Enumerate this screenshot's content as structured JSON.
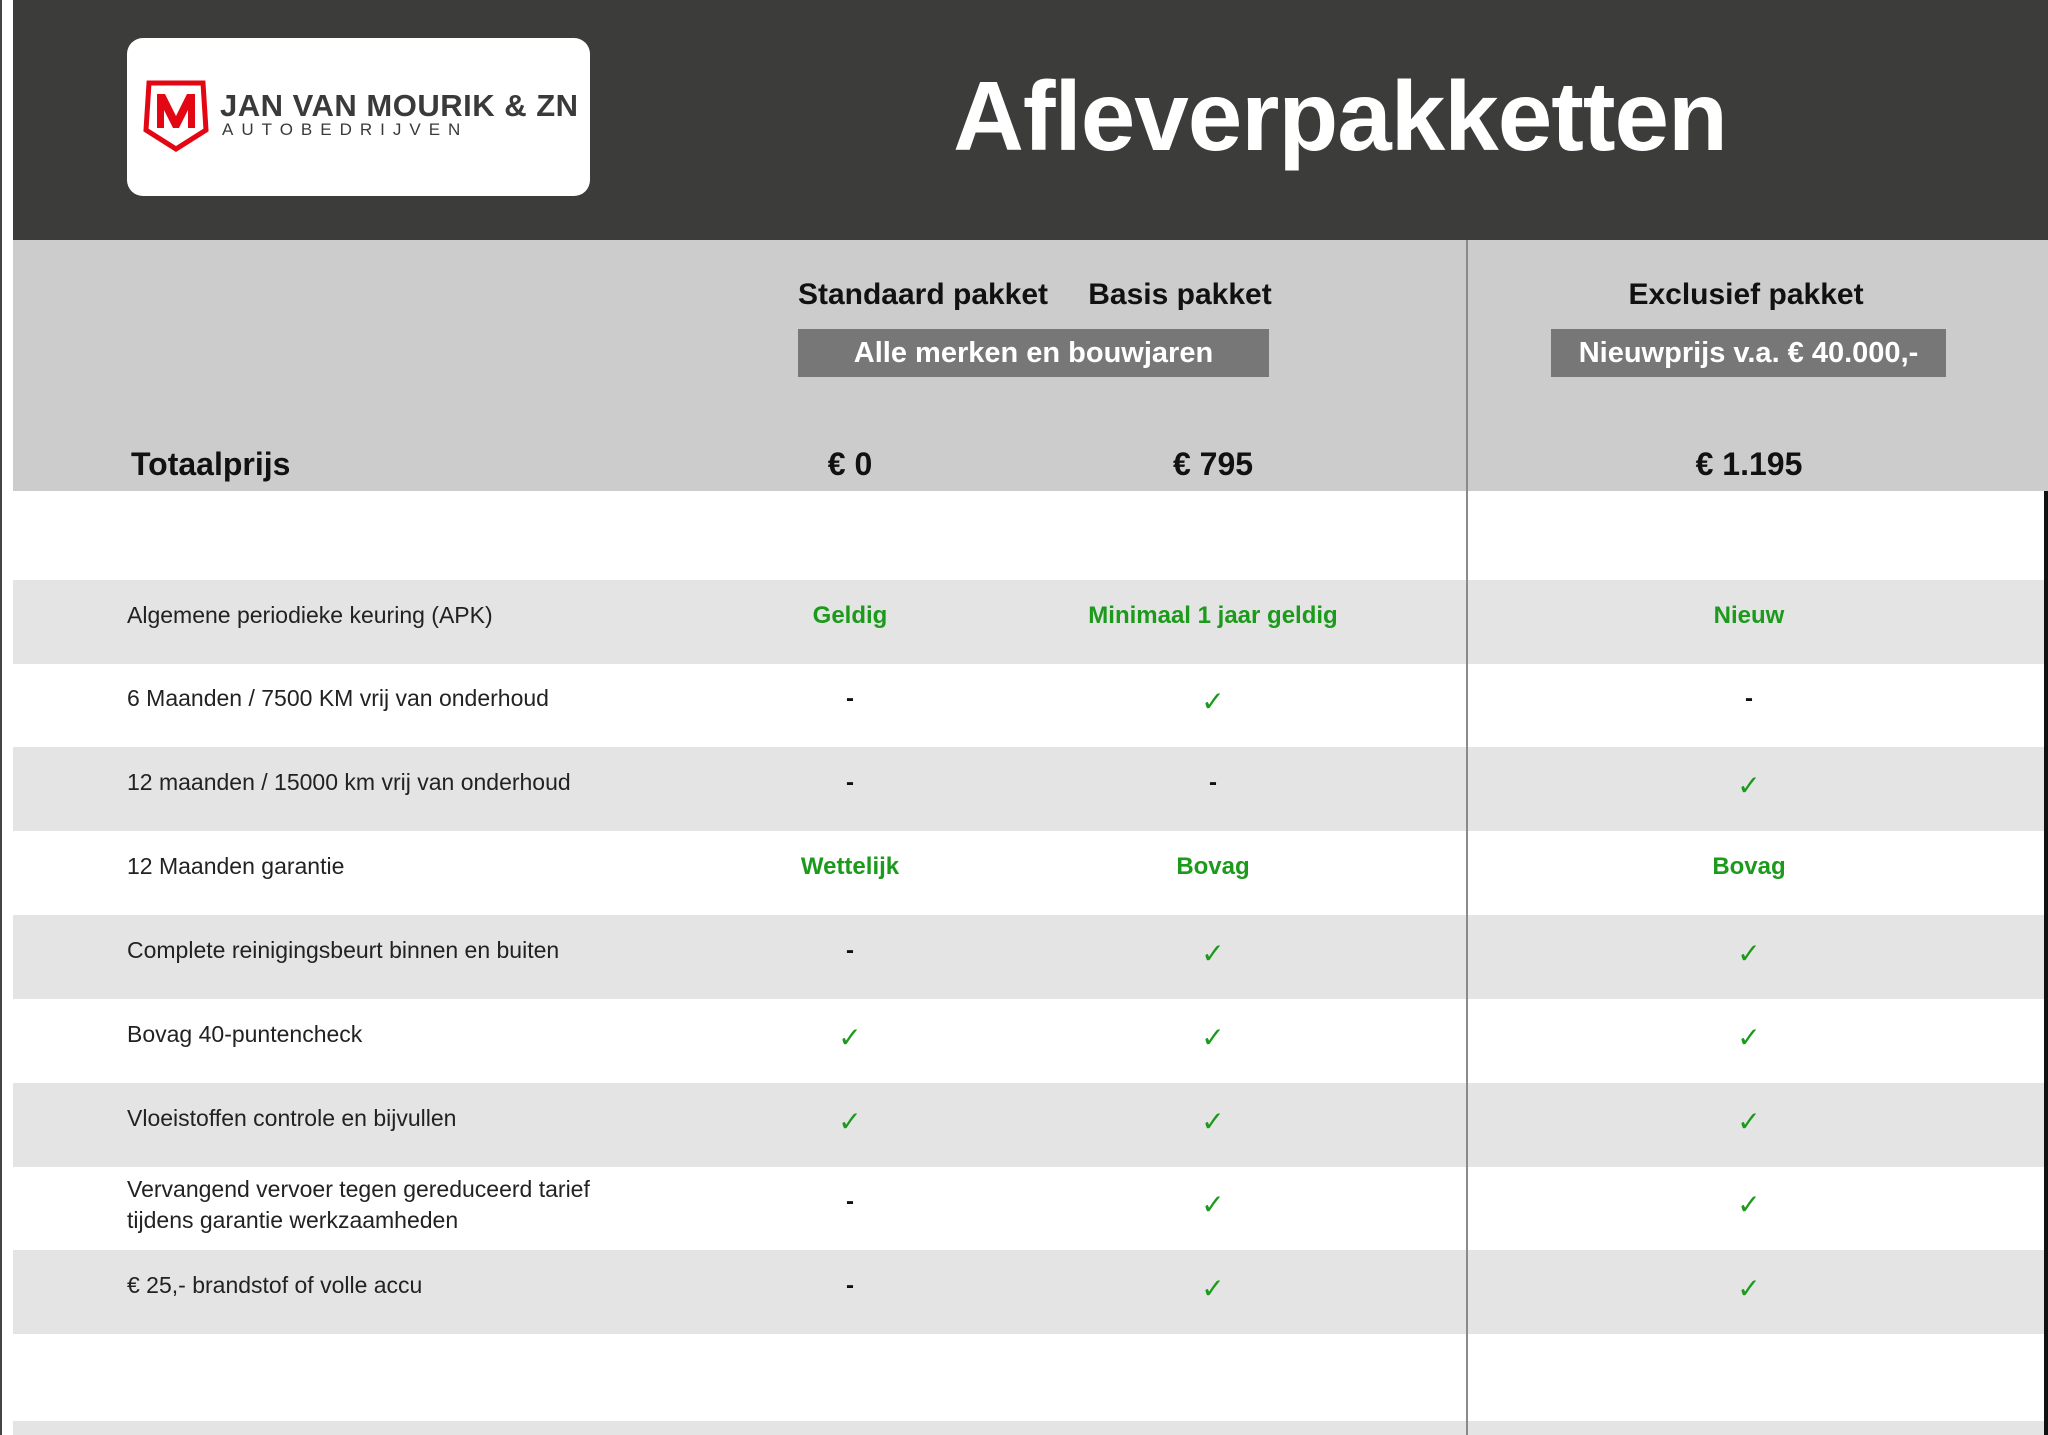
{
  "logo": {
    "name": "JAN VAN MOURIK & ZN",
    "subtitle": "AUTOBEDRIJVEN",
    "mark": "M"
  },
  "title": "Afleverpakketten",
  "columns": [
    {
      "name": "Standaard pakket",
      "price": "€ 0"
    },
    {
      "name": "Basis pakket",
      "price": "€ 795"
    },
    {
      "name": "Exclusief pakket",
      "price": "€ 1.195"
    }
  ],
  "tags": {
    "standard_basis": "Alle merken en bouwjaren",
    "exclusive": "Nieuwprijs v.a. € 40.000,-"
  },
  "total_label": "Totaalprijs",
  "colors": {
    "header": "#3c3c3b",
    "band": "#cccccc",
    "row_alt": "#e4e4e4",
    "green": "#1b9a1b",
    "logo_red": "#e30613"
  },
  "rows": [
    {
      "label": "Algemene periodieke keuring (APK)",
      "values": [
        "Geldig",
        "Minimaal 1 jaar geldig",
        "Nieuw"
      ]
    },
    {
      "label": "6 Maanden / 7500 KM vrij van onderhoud",
      "values": [
        "-",
        "✓",
        "-"
      ]
    },
    {
      "label": "12 maanden / 15000 km vrij van onderhoud",
      "values": [
        "-",
        "-",
        "✓"
      ]
    },
    {
      "label": "12 Maanden  garantie",
      "values": [
        "Wettelijk",
        "Bovag",
        "Bovag"
      ]
    },
    {
      "label": "Complete reinigingsbeurt binnen en buiten",
      "values": [
        "-",
        "✓",
        "✓"
      ]
    },
    {
      "label": "Bovag 40-puntencheck",
      "values": [
        "✓",
        "✓",
        "✓"
      ]
    },
    {
      "label": "Vloeistoffen controle en bijvullen",
      "values": [
        "✓",
        "✓",
        "✓"
      ]
    },
    {
      "label": "Vervangend vervoer tegen gereduceerd tarief\ntijdens garantie werkzaamheden",
      "values": [
        "-",
        "✓",
        "✓"
      ]
    },
    {
      "label": "€ 25,- brandstof of  volle accu",
      "values": [
        "-",
        "✓",
        "✓"
      ]
    }
  ]
}
